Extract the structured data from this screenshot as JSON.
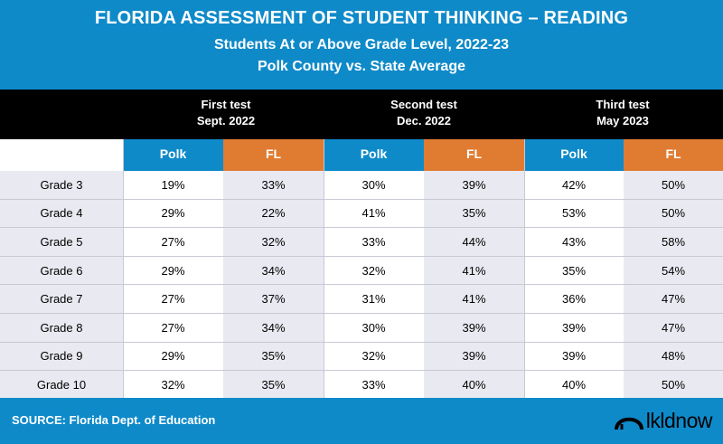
{
  "header": {
    "title": "FLORIDA ASSESSMENT OF STUDENT THINKING – READING",
    "subtitle": "Students At or Above Grade Level, 2022-23",
    "subtitle2": "Polk County vs. State Average"
  },
  "tests": [
    {
      "name": "First test",
      "date": "Sept. 2022"
    },
    {
      "name": "Second test",
      "date": "Dec. 2022"
    },
    {
      "name": "Third test",
      "date": "May 2023"
    }
  ],
  "columns": [
    "Polk",
    "FL",
    "Polk",
    "FL",
    "Polk",
    "FL"
  ],
  "footer": {
    "source": "SOURCE:  Florida Dept. of Education",
    "logo_text": "lkldnow"
  },
  "colors": {
    "blue": "#0f8ac9",
    "orange": "#e07b32"
  },
  "chart_data": {
    "type": "table",
    "title": "FLORIDA ASSESSMENT OF STUDENT THINKING – READING",
    "rows": [
      {
        "grade": "Grade 3",
        "values": [
          "19%",
          "33%",
          "30%",
          "39%",
          "42%",
          "50%"
        ]
      },
      {
        "grade": "Grade 4",
        "values": [
          "29%",
          "22%",
          "41%",
          "35%",
          "53%",
          "50%"
        ]
      },
      {
        "grade": "Grade 5",
        "values": [
          "27%",
          "32%",
          "33%",
          "44%",
          "43%",
          "58%"
        ]
      },
      {
        "grade": "Grade 6",
        "values": [
          "29%",
          "34%",
          "32%",
          "41%",
          "35%",
          "54%"
        ]
      },
      {
        "grade": "Grade 7",
        "values": [
          "27%",
          "37%",
          "31%",
          "41%",
          "36%",
          "47%"
        ]
      },
      {
        "grade": "Grade 8",
        "values": [
          "27%",
          "34%",
          "30%",
          "39%",
          "39%",
          "47%"
        ]
      },
      {
        "grade": "Grade 9",
        "values": [
          "29%",
          "35%",
          "32%",
          "39%",
          "39%",
          "48%"
        ]
      },
      {
        "grade": "Grade 10",
        "values": [
          "32%",
          "35%",
          "33%",
          "40%",
          "40%",
          "50%"
        ]
      }
    ]
  }
}
